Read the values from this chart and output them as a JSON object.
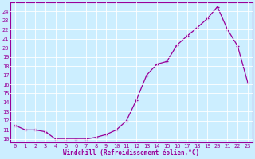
{
  "x_data": [
    0,
    1,
    2,
    3,
    4,
    5,
    6,
    7,
    8,
    9,
    10,
    11,
    12,
    13,
    14,
    15,
    16,
    17,
    18,
    19,
    20,
    21,
    22,
    23
  ],
  "y_data": [
    11.5,
    11.0,
    11.0,
    10.8,
    10.0,
    10.0,
    10.0,
    10.0,
    10.2,
    10.5,
    11.0,
    12.0,
    14.3,
    17.0,
    18.2,
    18.5,
    20.3,
    21.3,
    22.2,
    23.2,
    24.5,
    22.0,
    20.2,
    16.2
  ],
  "line_color": "#990099",
  "bg_color": "#cceeff",
  "grid_color": "#aaddee",
  "xlabel": "Windchill (Refroidissement éolien,°C)",
  "xlabel_color": "#990099",
  "ylim_min": 9.6,
  "ylim_max": 25.0,
  "xlim_min": -0.5,
  "xlim_max": 23.5,
  "yticks": [
    10,
    11,
    12,
    13,
    14,
    15,
    16,
    17,
    18,
    19,
    20,
    21,
    22,
    23,
    24
  ],
  "xticks": [
    0,
    1,
    2,
    3,
    4,
    5,
    6,
    7,
    8,
    9,
    10,
    11,
    12,
    13,
    14,
    15,
    16,
    17,
    18,
    19,
    20,
    21,
    22,
    23
  ],
  "ytick_labels": [
    "10",
    "11",
    "12",
    "13",
    "14",
    "15",
    "16",
    "17",
    "18",
    "19",
    "20",
    "21",
    "22",
    "23",
    "24"
  ],
  "xtick_labels": [
    "0",
    "1",
    "2",
    "3",
    "4",
    "5",
    "6",
    "7",
    "8",
    "9",
    "10",
    "11",
    "12",
    "13",
    "14",
    "15",
    "16",
    "17",
    "18",
    "19",
    "20",
    "21",
    "22",
    "23"
  ],
  "tick_fontsize": 5,
  "xlabel_fontsize": 5.5,
  "marker": "+",
  "markersize": 3,
  "linewidth": 0.9
}
